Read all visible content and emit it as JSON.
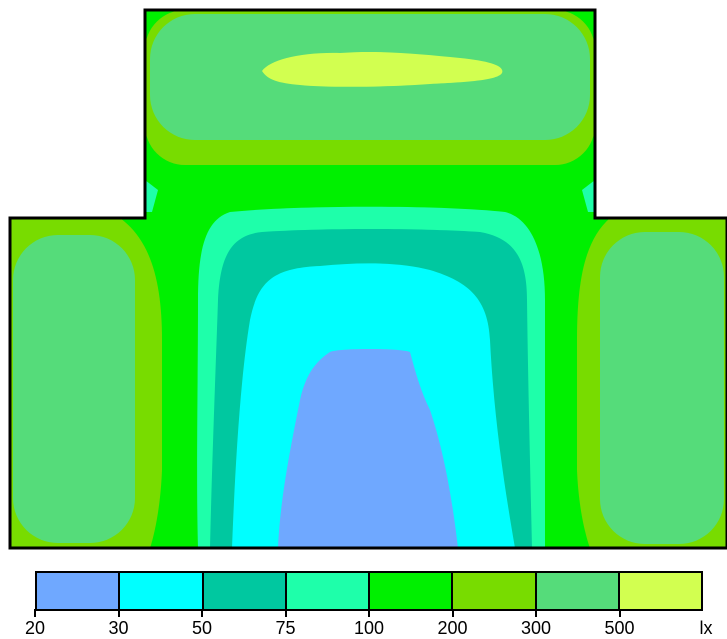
{
  "legend": {
    "unit": "lx",
    "ticks": [
      "20",
      "30",
      "50",
      "75",
      "100",
      "200",
      "300",
      "500"
    ],
    "colors": [
      "#6fa8ff",
      "#00ffff",
      "#00c8a0",
      "#1effaa",
      "#00f000",
      "#78dc00",
      "#55dc7a",
      "#d2ff50"
    ]
  },
  "map": {
    "outline_color": "#000000",
    "zones": [
      {
        "name": "upper-room",
        "level_lx": "300-500",
        "peak": "500+"
      },
      {
        "name": "left-wing",
        "level_lx": "300-500"
      },
      {
        "name": "right-wing",
        "level_lx": "300-500"
      },
      {
        "name": "center-hall",
        "level_lx": "20-100",
        "minimum": "20-30"
      }
    ]
  }
}
